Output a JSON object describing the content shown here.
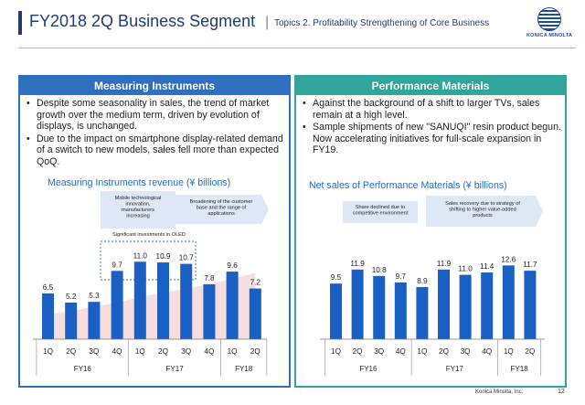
{
  "header": {
    "title": "FY2018 2Q Business Segment",
    "separator": "|",
    "subtitle": "Topics 2. Profitability Strengthening of Core Business",
    "logo_text": "KONICA MINOLTA"
  },
  "left": {
    "heading": "Measuring  Instruments",
    "bullets": [
      "Despite some seasonality in sales, the trend of market growth over the medium term, driven by evolution of displays, is unchanged.",
      "Due to the impact on smartphone display-related demand of a switch to new models, sales fell more than expected QoQ."
    ]
  },
  "right": {
    "heading": "Performance Materials",
    "bullets": [
      "Against the background of a shift to larger TVs, sales remain at a high level.",
      "Sample shipments of new \"SANUQI\" resin product begun. Now accelerating initiatives for full-scale expansion in FY19."
    ]
  },
  "colors": {
    "navy": "#1f3c73",
    "blue_panel": "#2e6fbf",
    "teal_panel": "#2fa59b",
    "bar": "#1a5fc4",
    "chart_title": "#1f6fce",
    "callout": "#dce8f6",
    "trend_band": "#f6d8d8"
  },
  "footer": {
    "company": "Konica Minolta, Inc.",
    "page": "12"
  },
  "chart_data": [
    {
      "type": "bar",
      "title": "Measuring Instruments revenue (¥ billions)",
      "categories": [
        "1Q",
        "2Q",
        "3Q",
        "4Q",
        "1Q",
        "2Q",
        "3Q",
        "4Q",
        "1Q",
        "2Q"
      ],
      "values": [
        6.5,
        5.2,
        5.3,
        9.7,
        11.0,
        10.9,
        10.7,
        7.8,
        9.6,
        7.2
      ],
      "value_labels": [
        "6.5",
        "5.2",
        "5.3",
        "9.7",
        "11.0",
        "10.9",
        "10.7",
        "7.8",
        "9.6",
        "7.2"
      ],
      "groups": [
        {
          "label": "FY16",
          "span": 4
        },
        {
          "label": "FY17",
          "span": 4
        },
        {
          "label": "FY18",
          "span": 2
        }
      ],
      "ylim": [
        0,
        14
      ],
      "annotations": [
        "Mobile technological innovation, manufacturers increasing",
        "Broadening of the customer base and the range of applications",
        "Significant investments in OLED"
      ]
    },
    {
      "type": "bar",
      "title": "Net sales of Performance Materials (¥ billions)",
      "categories": [
        "1Q",
        "2Q",
        "3Q",
        "4Q",
        "1Q",
        "2Q",
        "3Q",
        "4Q",
        "1Q",
        "2Q"
      ],
      "values": [
        9.5,
        11.9,
        10.8,
        9.7,
        8.9,
        11.9,
        11.0,
        11.4,
        12.6,
        11.7
      ],
      "value_labels": [
        "9.5",
        "11.9",
        "10.8",
        "9.7",
        "8.9",
        "11.9",
        "11.0",
        "11.4",
        "12.6",
        "11.7"
      ],
      "groups": [
        {
          "label": "FY16",
          "span": 4
        },
        {
          "label": "FY17",
          "span": 4
        },
        {
          "label": "FY18",
          "span": 2
        }
      ],
      "ylim": [
        0,
        14
      ],
      "annotations": [
        "Share declined due to competitive environment",
        "Sales recovery due to strategy of shifting to higher value-added products"
      ]
    }
  ]
}
